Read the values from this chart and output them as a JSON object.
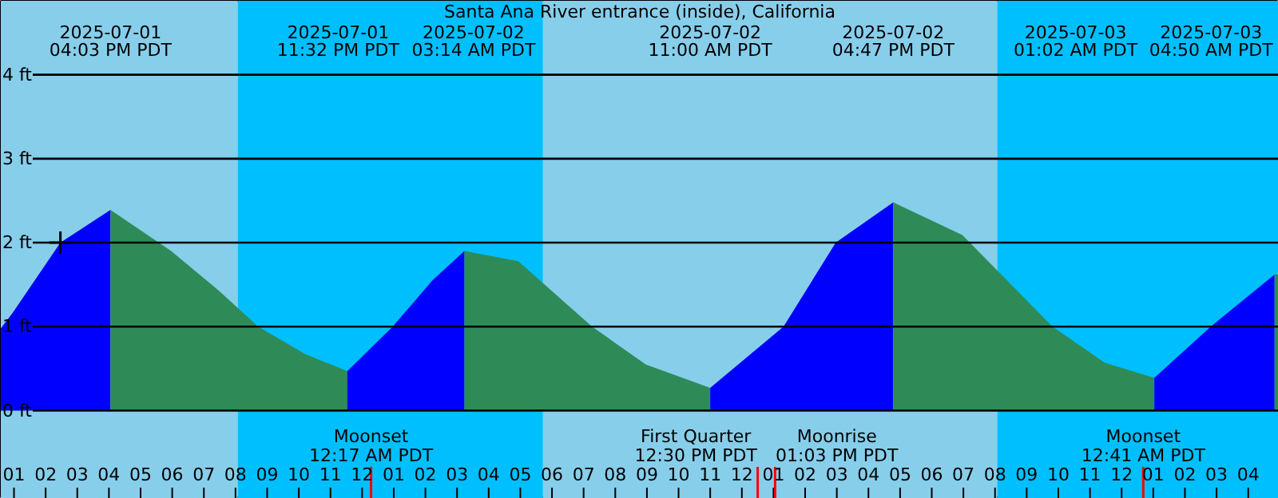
{
  "chart_data": {
    "type": "area",
    "title": "Santa Ana River entrance (inside), California",
    "series": [
      {
        "color": "#0000ff",
        "x": [
          "2025-07-01T12:35",
          "2025-07-01T12:58",
          "2025-07-01T14:28",
          "2025-07-01T16:03"
        ],
        "values": [
          0.98,
          1.17,
          2.0,
          2.39
        ]
      },
      {
        "color": "#2e8b57",
        "x": [
          "2025-07-01T16:03",
          "2025-07-01T17:58",
          "2025-07-01T19:28",
          "2025-07-01T20:43",
          "2025-07-01T22:13",
          "2025-07-01T23:32"
        ],
        "values": [
          2.39,
          1.9,
          1.43,
          1.0,
          0.67,
          0.47
        ]
      },
      {
        "color": "#0000ff",
        "x": [
          "2025-07-01T23:32",
          "2025-07-02T00:58",
          "2025-07-02T02:13",
          "2025-07-02T03:14"
        ],
        "values": [
          0.47,
          1.0,
          1.55,
          1.9
        ]
      },
      {
        "color": "#2e8b57",
        "x": [
          "2025-07-02T03:14",
          "2025-07-02T04:56",
          "2025-07-02T07:16",
          "2025-07-02T08:58",
          "2025-07-02T11:00"
        ],
        "values": [
          1.9,
          1.78,
          1.0,
          0.55,
          0.27
        ]
      },
      {
        "color": "#0000ff",
        "x": [
          "2025-07-02T11:00",
          "2025-07-02T13:19",
          "2025-07-02T14:58",
          "2025-07-02T16:47"
        ],
        "values": [
          0.27,
          1.0,
          2.0,
          2.48
        ]
      },
      {
        "color": "#2e8b57",
        "x": [
          "2025-07-02T16:47",
          "2025-07-02T18:58",
          "2025-07-02T21:49",
          "2025-07-02T23:28",
          "2025-07-03T01:02"
        ],
        "values": [
          2.48,
          2.09,
          1.0,
          0.57,
          0.39
        ]
      },
      {
        "color": "#0000ff",
        "x": [
          "2025-07-03T01:02",
          "2025-07-03T02:49",
          "2025-07-03T04:50"
        ],
        "values": [
          0.39,
          1.0,
          1.62
        ]
      },
      {
        "color": "#2e8b57",
        "x": [
          "2025-07-03T04:50",
          "2025-07-03T04:58"
        ],
        "values": [
          1.62,
          1.62
        ]
      },
      {
        "type": "scatter",
        "marker": "cross",
        "color": "#000000",
        "x": [
          "2025-07-01T14:28"
        ],
        "values": [
          2.0
        ]
      }
    ],
    "xlim": [
      "2025-07-01T12:35",
      "2025-07-03T04:58"
    ],
    "xticks": [
      {
        "value": "2025-07-01T13:00",
        "label": "01"
      },
      {
        "value": "2025-07-01T14:00",
        "label": "02"
      },
      {
        "value": "2025-07-01T15:00",
        "label": "03"
      },
      {
        "value": "2025-07-01T16:00",
        "label": "04"
      },
      {
        "value": "2025-07-01T17:00",
        "label": "05"
      },
      {
        "value": "2025-07-01T18:00",
        "label": "06"
      },
      {
        "value": "2025-07-01T19:00",
        "label": "07"
      },
      {
        "value": "2025-07-01T20:00",
        "label": "08"
      },
      {
        "value": "2025-07-01T21:00",
        "label": "09"
      },
      {
        "value": "2025-07-01T22:00",
        "label": "10"
      },
      {
        "value": "2025-07-01T23:00",
        "label": "11"
      },
      {
        "value": "2025-07-02T00:00",
        "label": "12"
      },
      {
        "value": "2025-07-02T01:00",
        "label": "01"
      },
      {
        "value": "2025-07-02T02:00",
        "label": "02"
      },
      {
        "value": "2025-07-02T03:00",
        "label": "03"
      },
      {
        "value": "2025-07-02T04:00",
        "label": "04"
      },
      {
        "value": "2025-07-02T05:00",
        "label": "05"
      },
      {
        "value": "2025-07-02T06:00",
        "label": "06"
      },
      {
        "value": "2025-07-02T07:00",
        "label": "07"
      },
      {
        "value": "2025-07-02T08:00",
        "label": "08"
      },
      {
        "value": "2025-07-02T09:00",
        "label": "09"
      },
      {
        "value": "2025-07-02T10:00",
        "label": "10"
      },
      {
        "value": "2025-07-02T11:00",
        "label": "11"
      },
      {
        "value": "2025-07-02T12:00",
        "label": "12"
      },
      {
        "value": "2025-07-02T13:00",
        "label": "01"
      },
      {
        "value": "2025-07-02T14:00",
        "label": "02"
      },
      {
        "value": "2025-07-02T15:00",
        "label": "03"
      },
      {
        "value": "2025-07-02T16:00",
        "label": "04"
      },
      {
        "value": "2025-07-02T17:00",
        "label": "05"
      },
      {
        "value": "2025-07-02T18:00",
        "label": "06"
      },
      {
        "value": "2025-07-02T19:00",
        "label": "07"
      },
      {
        "value": "2025-07-02T20:00",
        "label": "08"
      },
      {
        "value": "2025-07-02T21:00",
        "label": "09"
      },
      {
        "value": "2025-07-02T22:00",
        "label": "10"
      },
      {
        "value": "2025-07-02T23:00",
        "label": "11"
      },
      {
        "value": "2025-07-03T00:00",
        "label": "12"
      },
      {
        "value": "2025-07-03T01:00",
        "label": "01"
      },
      {
        "value": "2025-07-03T02:00",
        "label": "02"
      },
      {
        "value": "2025-07-03T03:00",
        "label": "03"
      },
      {
        "value": "2025-07-03T04:00",
        "label": "04"
      }
    ],
    "ylim": [
      -1.05,
      4.88
    ],
    "yticks": [
      {
        "value": 0,
        "label": "0 ft"
      },
      {
        "value": 1,
        "label": "1 ft"
      },
      {
        "value": 2,
        "label": "2 ft"
      },
      {
        "value": 3,
        "label": "3 ft"
      },
      {
        "value": 4,
        "label": "4 ft"
      }
    ],
    "grid": "y",
    "bands": [
      {
        "axis": "x",
        "from": "2025-07-01T12:35",
        "to": "2025-07-01T20:04",
        "color": "#87ceeb"
      },
      {
        "axis": "x",
        "from": "2025-07-01T20:04",
        "to": "2025-07-02T05:43",
        "color": "#00bfff"
      },
      {
        "axis": "x",
        "from": "2025-07-02T05:43",
        "to": "2025-07-02T20:04",
        "color": "#87ceeb"
      },
      {
        "axis": "x",
        "from": "2025-07-02T20:04",
        "to": "2025-07-03T04:58",
        "color": "#00bfff"
      }
    ],
    "ref_lines": [
      {
        "axis": "x",
        "value": "2025-07-02T00:17",
        "label": "Moonset\n12:17 AM PDT",
        "color": "#ff0000"
      },
      {
        "axis": "x",
        "value": "2025-07-02T12:30",
        "label": "First Quarter\n12:30 PM PDT",
        "color": "#ff0000"
      },
      {
        "axis": "x",
        "value": "2025-07-02T13:03",
        "label": "Moonrise\n01:03 PM PDT",
        "color": "#ff0000"
      },
      {
        "axis": "x",
        "value": "2025-07-03T00:41",
        "label": "Moonset\n12:41 AM PDT",
        "color": "#ff0000"
      }
    ],
    "annotations": [
      "2025-07-01\n04:03 PM PDT",
      "2025-07-01\n11:32 PM PDT",
      "2025-07-02\n03:14 AM PDT",
      "2025-07-02\n11:00 AM PDT",
      "2025-07-02\n04:47 PM PDT",
      "2025-07-03\n01:02 AM PDT",
      "2025-07-03\n04:50 AM PDT"
    ]
  }
}
